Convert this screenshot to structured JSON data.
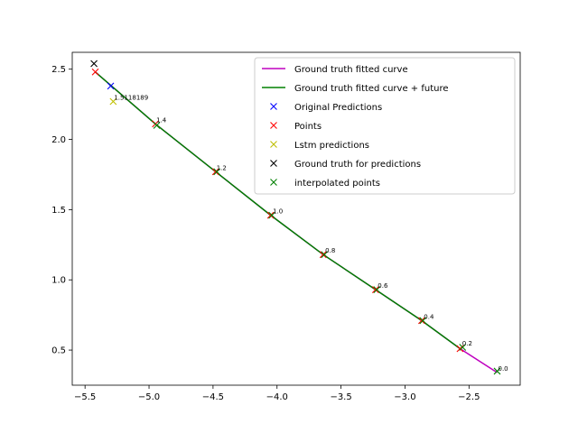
{
  "chart_data": {
    "type": "line",
    "title": "",
    "xlabel": "",
    "ylabel": "",
    "xlim": [
      -5.6,
      -2.1
    ],
    "ylim": [
      0.25,
      2.62
    ],
    "xticks": [
      -5.5,
      -5.0,
      -4.5,
      -4.0,
      -3.5,
      -3.0,
      -2.5
    ],
    "xtick_labels": [
      "−5.5",
      "−5.0",
      "−4.5",
      "−4.0",
      "−3.5",
      "−3.0",
      "−2.5"
    ],
    "yticks": [
      0.5,
      1.0,
      1.5,
      2.0,
      2.5
    ],
    "ytick_labels": [
      "0.5",
      "1.0",
      "1.5",
      "2.0",
      "2.5"
    ],
    "grid": false,
    "legend_position": "top-right",
    "series": [
      {
        "name": "Ground truth fitted curve",
        "kind": "line",
        "color": "#bf00bf",
        "x": [
          -2.28,
          -2.57,
          -2.87,
          -3.23,
          -3.64,
          -4.05,
          -4.48,
          -4.95,
          -5.28,
          -5.42
        ],
        "y": [
          0.34,
          0.51,
          0.71,
          0.93,
          1.18,
          1.46,
          1.77,
          2.11,
          2.37,
          2.48
        ]
      },
      {
        "name": "Ground truth fitted curve + future",
        "kind": "line",
        "color": "#008000",
        "x": [
          -2.57,
          -2.87,
          -3.23,
          -3.64,
          -4.05,
          -4.48,
          -4.95,
          -5.28,
          -5.42
        ],
        "y": [
          0.51,
          0.71,
          0.93,
          1.18,
          1.46,
          1.77,
          2.11,
          2.37,
          2.48
        ]
      },
      {
        "name": "Original Predictions",
        "kind": "marker",
        "color": "#0000ff",
        "x": [
          -5.3
        ],
        "y": [
          2.38
        ]
      },
      {
        "name": "Points",
        "kind": "marker",
        "color": "#ff0000",
        "x": [
          -2.57,
          -2.87,
          -3.23,
          -3.64,
          -4.05,
          -4.48,
          -4.95,
          -5.42
        ],
        "y": [
          0.51,
          0.71,
          0.93,
          1.18,
          1.46,
          1.77,
          2.11,
          2.48
        ]
      },
      {
        "name": "Lstm predictions",
        "kind": "marker",
        "color": "#bfbf00",
        "x": [
          -5.28
        ],
        "y": [
          2.27
        ]
      },
      {
        "name": "Ground truth for predictions",
        "kind": "marker",
        "color": "#000000",
        "x": [
          -5.43
        ],
        "y": [
          2.54
        ]
      },
      {
        "name": "interpolated points",
        "kind": "marker",
        "color": "#008000",
        "x": [
          -2.28,
          -2.55,
          -2.86,
          -3.22,
          -3.63,
          -4.04,
          -4.47,
          -4.94
        ],
        "y": [
          0.35,
          0.52,
          0.71,
          0.93,
          1.18,
          1.46,
          1.77,
          2.1
        ]
      }
    ],
    "annotations": [
      {
        "text": "0.0",
        "x": -2.28,
        "y": 0.34
      },
      {
        "text": "0.2",
        "x": -2.56,
        "y": 0.52
      },
      {
        "text": "0.4",
        "x": -2.86,
        "y": 0.71
      },
      {
        "text": "0.6",
        "x": -3.22,
        "y": 0.93
      },
      {
        "text": "0.8",
        "x": -3.63,
        "y": 1.18
      },
      {
        "text": "1.0",
        "x": -4.04,
        "y": 1.46
      },
      {
        "text": "1.2",
        "x": -4.48,
        "y": 1.77
      },
      {
        "text": "1.4",
        "x": -4.95,
        "y": 2.11
      },
      {
        "text": "1.5118189",
        "x": -5.28,
        "y": 2.27
      }
    ]
  }
}
